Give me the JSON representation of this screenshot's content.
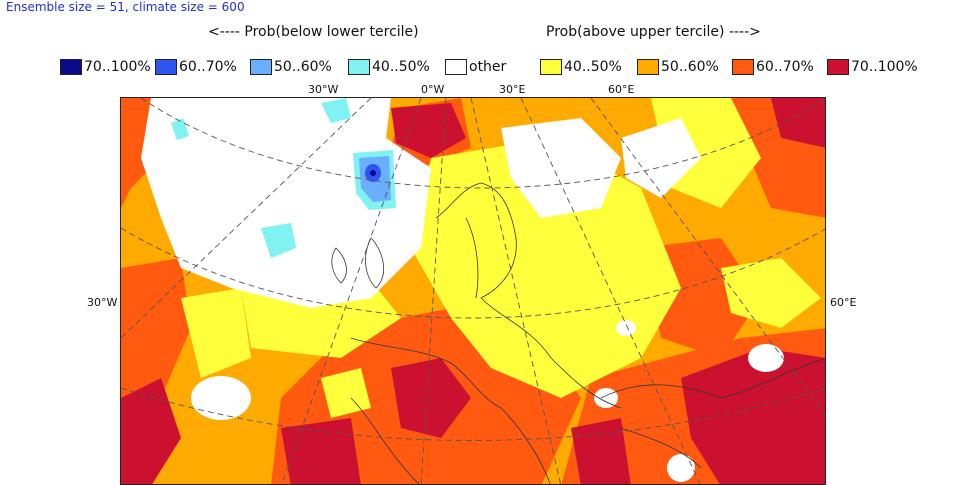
{
  "header": {
    "info": "Ensemble size = 51, climate size = 600"
  },
  "directions": {
    "below": "<---- Prob(below lower tercile)",
    "above": "Prob(above upper tercile) ---->"
  },
  "legend": [
    {
      "label": "70..100%",
      "color": "#0a0a8c"
    },
    {
      "label": "60..70%",
      "color": "#2f55f0"
    },
    {
      "label": "50..60%",
      "color": "#6aaeff"
    },
    {
      "label": "40..50%",
      "color": "#80f2f2"
    },
    {
      "label": "other",
      "color": "#ffffff"
    },
    {
      "label": "40..50%",
      "color": "#ffff3c"
    },
    {
      "label": "50..60%",
      "color": "#ffaa00"
    },
    {
      "label": "60..70%",
      "color": "#ff5a10"
    },
    {
      "label": "70..100%",
      "color": "#cc1030"
    }
  ],
  "axis_labels": {
    "top": [
      "30°W",
      "0°W",
      "30°E",
      "60°E"
    ],
    "left": "30°W",
    "right": "60°E"
  }
}
